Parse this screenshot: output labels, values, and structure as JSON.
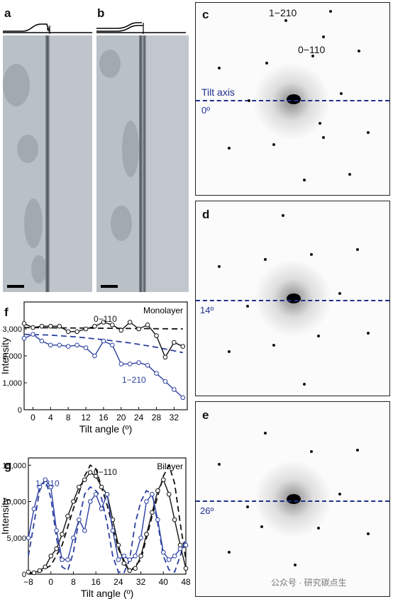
{
  "panels": {
    "a": {
      "label": "a"
    },
    "b": {
      "label": "b"
    },
    "c": {
      "label": "c",
      "spot_label_1": "1−210",
      "spot_label_2": "0−110",
      "tilt_axis_label": "Tilt axis",
      "angle": "0º"
    },
    "d": {
      "label": "d",
      "angle": "14º"
    },
    "e": {
      "label": "e",
      "angle": "26º"
    }
  },
  "chart_data": [
    {
      "panel": "f",
      "type": "line",
      "title": "Monolayer",
      "xlabel": "Tilt angle (º)",
      "ylabel": "Intensity",
      "xlim": [
        -2,
        35
      ],
      "ylim": [
        0,
        4000
      ],
      "xticks": [
        0,
        4,
        8,
        12,
        16,
        20,
        24,
        28,
        32
      ],
      "yticks": [
        0,
        1000,
        2000,
        3000
      ],
      "ytick_labels": [
        "0",
        "1,000",
        "2,000",
        "3,000"
      ],
      "series": [
        {
          "name": "0−110",
          "style": "measured",
          "color": "#111111",
          "x": [
            -2,
            0,
            2,
            4,
            6,
            8,
            10,
            12,
            14,
            16,
            18,
            20,
            22,
            24,
            26,
            28,
            30,
            32,
            34
          ],
          "y": [
            3200,
            3050,
            3100,
            3100,
            3100,
            2900,
            2900,
            3000,
            3100,
            3250,
            3150,
            2950,
            3250,
            3000,
            3150,
            2750,
            1950,
            2500,
            2350
          ]
        },
        {
          "name": "",
          "style": "model",
          "color": "#111111",
          "dash": true,
          "x": [
            -2,
            34
          ],
          "y": [
            3050,
            3000
          ]
        },
        {
          "name": "1−210",
          "style": "measured",
          "color": "#2b3fa0",
          "x": [
            -2,
            0,
            2,
            4,
            6,
            8,
            10,
            12,
            14,
            16,
            18,
            20,
            22,
            24,
            26,
            28,
            30,
            32,
            34
          ],
          "y": [
            2650,
            2800,
            2550,
            2400,
            2400,
            2350,
            2400,
            2300,
            2000,
            2550,
            2400,
            1700,
            1700,
            1750,
            1650,
            1350,
            1050,
            750,
            450
          ]
        },
        {
          "name": "",
          "style": "model",
          "color": "#2b3fa0",
          "dash": true,
          "x": [
            -2,
            4,
            10,
            16,
            22,
            28,
            34
          ],
          "y": [
            2800,
            2770,
            2700,
            2600,
            2480,
            2320,
            2120
          ]
        }
      ]
    },
    {
      "panel": "g",
      "type": "line",
      "title": "Bilayer",
      "xlabel": "Tilt angle (º)",
      "ylabel": "Intensity",
      "xlim": [
        -8,
        48
      ],
      "ylim": [
        0,
        16000
      ],
      "xticks": [
        -8,
        0,
        8,
        16,
        24,
        32,
        40,
        48
      ],
      "yticks": [
        0,
        5000,
        10000,
        15000
      ],
      "ytick_labels": [
        "0",
        "5,000",
        "10,000",
        "15,000"
      ],
      "series": [
        {
          "name": "0−110",
          "style": "measured",
          "color": "#111111",
          "x": [
            -8,
            -6,
            -4,
            -2,
            0,
            2,
            4,
            6,
            8,
            10,
            12,
            14,
            16,
            18,
            20,
            22,
            24,
            26,
            28,
            30,
            32,
            34,
            36,
            38,
            40,
            42,
            44,
            46,
            48
          ],
          "y": [
            300,
            200,
            500,
            1000,
            2500,
            3500,
            5500,
            8000,
            10000,
            12000,
            13000,
            14000,
            13500,
            12000,
            11000,
            7500,
            4000,
            1500,
            500,
            800,
            2500,
            5500,
            8500,
            11500,
            13000,
            11000,
            7500,
            4000,
            800
          ]
        },
        {
          "name": "",
          "style": "model",
          "color": "#111111",
          "dash": true,
          "x": [
            -8,
            -4,
            0,
            4,
            8,
            12,
            14,
            16,
            20,
            24,
            28,
            32,
            36,
            40,
            42,
            44,
            46,
            48
          ],
          "y": [
            100,
            300,
            1200,
            4000,
            9000,
            13500,
            15000,
            14500,
            9500,
            3500,
            300,
            2000,
            8000,
            13500,
            15000,
            12500,
            7000,
            2000
          ]
        },
        {
          "name": "1−210",
          "style": "measured",
          "color": "#2b3fa0",
          "x": [
            -8,
            -6,
            -4,
            -2,
            0,
            2,
            4,
            6,
            8,
            10,
            12,
            14,
            16,
            18,
            20,
            22,
            24,
            26,
            28,
            30,
            32,
            34,
            36,
            38,
            40,
            42,
            44,
            46,
            48
          ],
          "y": [
            5000,
            9000,
            12000,
            13000,
            12000,
            6000,
            2000,
            2000,
            5000,
            7500,
            6000,
            10000,
            11000,
            9000,
            11000,
            6000,
            2000,
            2500,
            2000,
            2500,
            5000,
            10000,
            11000,
            7500,
            3000,
            2000,
            2500,
            3500,
            4000
          ]
        },
        {
          "name": "",
          "style": "model",
          "color": "#2b3fa0",
          "dash": true,
          "x": [
            -8,
            -6,
            -4,
            -2,
            0,
            2,
            4,
            6,
            8,
            10,
            12,
            14,
            16,
            18,
            20,
            22,
            24,
            26,
            28,
            30,
            32,
            34,
            36,
            38,
            40,
            42,
            44,
            46,
            48
          ],
          "y": [
            2500,
            7000,
            11500,
            13000,
            10500,
            5000,
            1000,
            500,
            3000,
            7500,
            11000,
            12000,
            11500,
            10500,
            7000,
            2500,
            300,
            200,
            2000,
            7000,
            10000,
            11500,
            11000,
            7000,
            2500,
            600,
            300,
            2500,
            5000
          ]
        }
      ]
    }
  ],
  "watermark": "公众号 · 研究碳点生"
}
